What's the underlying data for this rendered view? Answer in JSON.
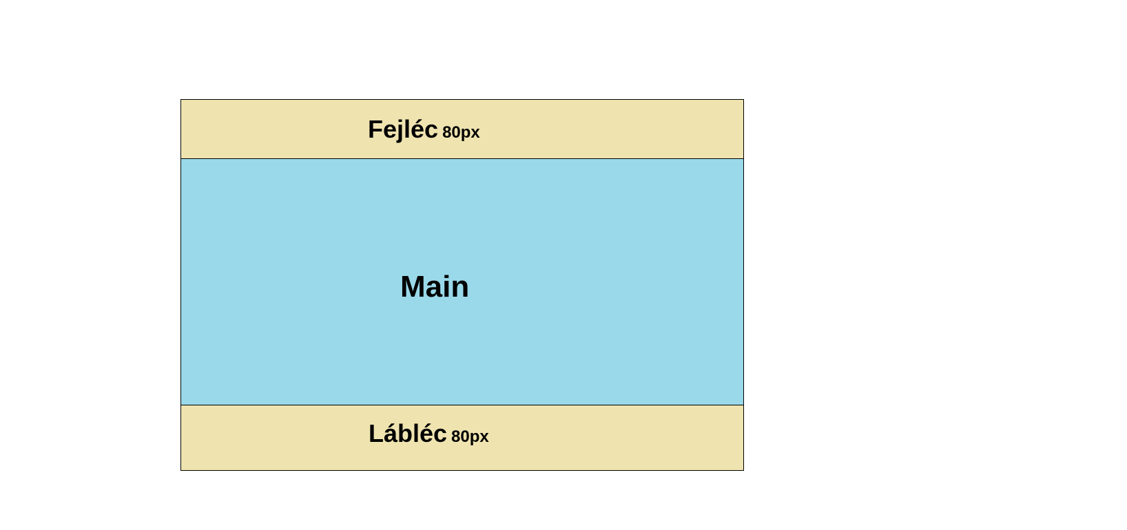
{
  "colors": {
    "band": "#efe4b0",
    "main": "#99d9ea"
  },
  "header": {
    "title": "Fejléc",
    "size": "80px"
  },
  "main": {
    "title": "Main"
  },
  "footer": {
    "title": "Lábléc",
    "size": "80px"
  }
}
